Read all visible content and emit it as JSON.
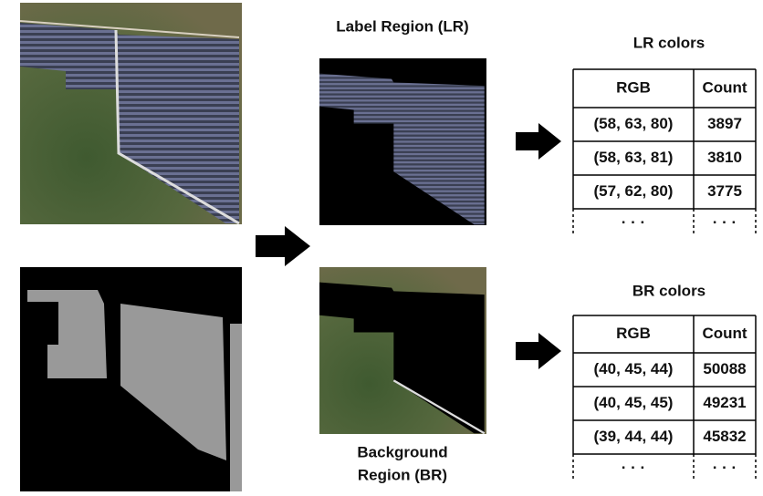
{
  "labels": {
    "lr_title": "Label Region (LR)",
    "br_title": [
      "Background",
      "Region (BR)"
    ]
  },
  "lr_table": {
    "title": "LR colors",
    "header": [
      "RGB",
      "Count"
    ],
    "rows": [
      [
        "(58, 63, 80)",
        "3897"
      ],
      [
        "(58, 63, 81)",
        "3810"
      ],
      [
        "(57, 62, 80)",
        "3775"
      ]
    ],
    "more": [
      "· · ·",
      "· · ·"
    ]
  },
  "br_table": {
    "title": "BR colors",
    "header": [
      "RGB",
      "Count"
    ],
    "rows": [
      [
        "(40, 45, 44)",
        "50088"
      ],
      [
        "(40, 45, 45)",
        "49231"
      ],
      [
        "(39, 44, 44)",
        "45832"
      ]
    ],
    "more": [
      "· · ·",
      "· · ·"
    ]
  }
}
